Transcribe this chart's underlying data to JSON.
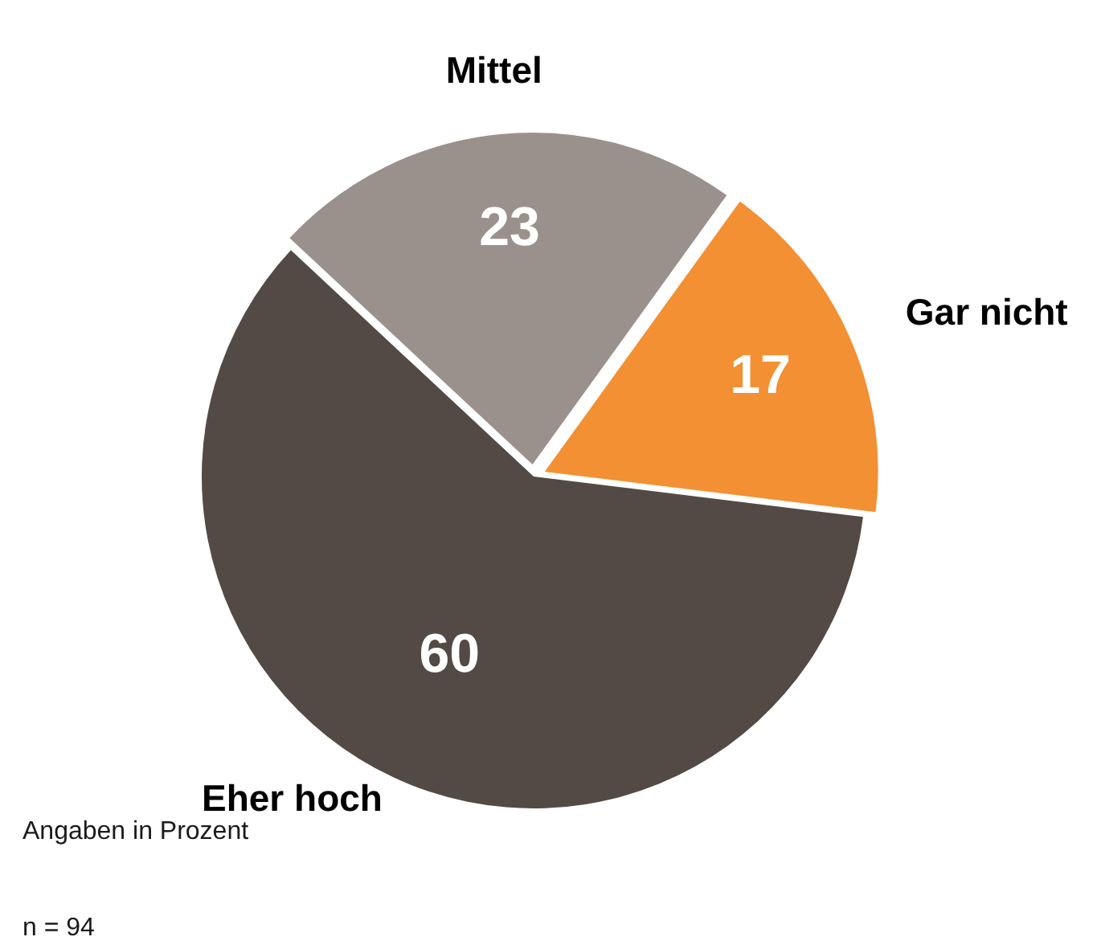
{
  "chart_data": {
    "type": "pie",
    "categories": [
      "Mittel",
      "Gar nicht",
      "Eher hoch"
    ],
    "values": [
      23,
      17,
      60
    ],
    "colors": [
      "#9b918c",
      "#f39033",
      "#534a45"
    ],
    "data_labels": true,
    "legend": false,
    "annotations": [
      "Angaben in Prozent",
      "n = 94"
    ]
  }
}
